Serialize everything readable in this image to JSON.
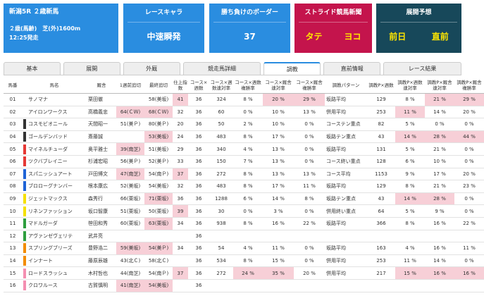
{
  "header": {
    "race": "新潟5R ２歳新馬",
    "conditions": "２歳(馬齢)　芝(外)1600m",
    "post_time": "12:25発走"
  },
  "cards": [
    {
      "title": "レースキャラ",
      "values": [
        "中速瞬発"
      ],
      "color": "#2a8de0",
      "value_color": "#ffffff"
    },
    {
      "title": "勝ち負けのボーダー",
      "values": [
        "37"
      ],
      "color": "#2a8de0",
      "value_color": "#ffffff"
    },
    {
      "title": "ストライド競馬新聞",
      "values": [
        "タテ",
        "ヨコ"
      ],
      "color": "#c4144c",
      "value_color": "#ffe600"
    },
    {
      "title": "展開予想",
      "values": [
        "前日",
        "直前"
      ],
      "color": "#17485a",
      "value_color": "#ffe600"
    }
  ],
  "tabs": {
    "items": [
      "基本",
      "展開",
      "外厩",
      "競走馬詳細",
      "調教",
      "直前情報",
      "レース結果"
    ],
    "active": 4
  },
  "table": {
    "columns": [
      "馬番",
      "馬名",
      "厩舎",
      "1週前追切",
      "最終追切",
      "仕上指数",
      "コース×週数",
      "コース×週数連対率",
      "コース×週数複勝率",
      "コース×厩舎連対率",
      "コース×厩舎複勝率",
      "調教パターン",
      "調教P×週数",
      "調教P×週数連対率",
      "調教P×厩舎連対率",
      "調教P×厩舎複勝率"
    ],
    "rows": [
      {
        "frame_color": "#ffffff",
        "highlighted": [
          5,
          9,
          10,
          14,
          15
        ],
        "cells": [
          "01",
          "サノマナ",
          "栗田徹",
          null,
          "58(美坂)",
          "41",
          "36",
          "324",
          "8 %",
          "20 %",
          "29 %",
          "坂路平均",
          "129",
          "8 %",
          "21 %",
          "29 %"
        ]
      },
      {
        "frame_color": "#ffffff",
        "highlighted": [
          3,
          4,
          13
        ],
        "cells": [
          "02",
          "アイロンワークス",
          "高橋義忠",
          "64(ＣＷ)",
          "68(ＣＷ)",
          "32",
          "36",
          "60",
          "0 %",
          "10 %",
          "13 %",
          "併用平均",
          "253",
          "11 %",
          "14 %",
          "20 %"
        ]
      },
      {
        "frame_color": "#333333",
        "highlighted": [],
        "cells": [
          "03",
          "コスモビオニール",
          "天間昭一",
          "51(美Ｐ)",
          "80(美Ｐ)",
          "20",
          "36",
          "50",
          "2 %",
          "10 %",
          "0 %",
          "コーステン重点",
          "82",
          "5 %",
          "0 %",
          "0 %"
        ]
      },
      {
        "frame_color": "#333333",
        "highlighted": [
          4,
          13,
          14,
          15
        ],
        "cells": [
          "04",
          "ゴールデンバッド",
          "斎藤誠",
          null,
          "53(美坂)",
          "24",
          "36",
          "483",
          "8 %",
          "17 %",
          "0 %",
          "坂路テン重点",
          "43",
          "14 %",
          "28 %",
          "44 %"
        ]
      },
      {
        "frame_color": "#e53935",
        "highlighted": [
          3
        ],
        "cells": [
          "05",
          "マイネルチューダ",
          "奥平雅士",
          "39(南芝)",
          "51(美坂)",
          "29",
          "36",
          "340",
          "4 %",
          "13 %",
          "0 %",
          "坂路平均",
          "131",
          "5 %",
          "21 %",
          "0 %"
        ]
      },
      {
        "frame_color": "#e53935",
        "highlighted": [],
        "cells": [
          "06",
          "ツクバブレイニー",
          "杉浦宏昭",
          "56(美Ｐ)",
          "52(美Ｐ)",
          "33",
          "36",
          "150",
          "7 %",
          "13 %",
          "0 %",
          "コース終い重点",
          "128",
          "6 %",
          "10 %",
          "0 %"
        ]
      },
      {
        "frame_color": "#1e63d6",
        "highlighted": [
          3,
          5
        ],
        "cells": [
          "07",
          "スパニッシュアート",
          "戸田博文",
          "47(南芝)",
          "54(南Ｐ)",
          "37",
          "36",
          "272",
          "8 %",
          "13 %",
          "13 %",
          "コース平均",
          "1153",
          "9 %",
          "17 %",
          "20 %"
        ]
      },
      {
        "frame_color": "#1e63d6",
        "highlighted": [],
        "cells": [
          "08",
          "ブロローグナンバー",
          "根本康広",
          "52(美坂)",
          "54(美坂)",
          "32",
          "36",
          "483",
          "8 %",
          "17 %",
          "11 %",
          "坂路平均",
          "129",
          "8 %",
          "21 %",
          "23 %"
        ]
      },
      {
        "frame_color": "#f5e000",
        "highlighted": [
          4,
          13,
          14
        ],
        "cells": [
          "09",
          "ジェットマックス",
          "森秀行",
          "66(栗坂)",
          "71(栗坂)",
          "36",
          "36",
          "1288",
          "6 %",
          "14 %",
          "8 %",
          "坂路テン重点",
          "43",
          "14 %",
          "28 %",
          "0 %"
        ]
      },
      {
        "frame_color": "#f5e000",
        "highlighted": [
          5
        ],
        "cells": [
          "10",
          "リネンファッション",
          "坂口智康",
          "51(栗坂)",
          "50(栗坂)",
          "39",
          "36",
          "30",
          "0 %",
          "3 %",
          "0 %",
          "併用終い重点",
          "64",
          "5 %",
          "9 %",
          "0 %"
        ]
      },
      {
        "frame_color": "#2e9e3e",
        "highlighted": [
          4
        ],
        "cells": [
          "11",
          "マドルガーダ",
          "笹田和秀",
          "60(栗坂)",
          "63(栗坂)",
          "34",
          "36",
          "938",
          "8 %",
          "16 %",
          "22 %",
          "坂路平均",
          "366",
          "8 %",
          "16 %",
          "22 %"
        ]
      },
      {
        "frame_color": "#2e9e3e",
        "highlighted": [],
        "cells": [
          "12",
          "アヴァンゼヴェリテ",
          "武井亮",
          null,
          null,
          null,
          "36",
          null,
          null,
          null,
          null,
          null,
          null,
          null,
          null,
          null
        ]
      },
      {
        "frame_color": "#f28c00",
        "highlighted": [
          3,
          4
        ],
        "cells": [
          "13",
          "スプリングブリーズ",
          "豊野浩二",
          "59(美坂)",
          "54(美Ｐ)",
          "34",
          "36",
          "54",
          "4 %",
          "11 %",
          "0 %",
          "坂路平均",
          "163",
          "4 %",
          "16 %",
          "11 %"
        ]
      },
      {
        "frame_color": "#f28c00",
        "highlighted": [],
        "cells": [
          "14",
          "インナート",
          "藤原辰雄",
          "43(北Ｃ)",
          "58(北Ｃ)",
          null,
          "36",
          "534",
          "8 %",
          "15 %",
          "0 %",
          "併用平均",
          "253",
          "11 %",
          "14 %",
          "0 %"
        ]
      },
      {
        "frame_color": "#f48fb1",
        "highlighted": [
          5,
          8,
          9,
          13,
          14,
          15
        ],
        "cells": [
          "15",
          "ロードスラッシュ",
          "木村哲也",
          "44(南芝)",
          "54(南Ｐ)",
          "37",
          "36",
          "272",
          "24 %",
          "35 %",
          "20 %",
          "併用平均",
          "217",
          "15 %",
          "16 %",
          "16 %"
        ]
      },
      {
        "frame_color": "#f48fb1",
        "highlighted": [
          3,
          4
        ],
        "cells": [
          "16",
          "クロワルース",
          "古賀慎明",
          "41(南芝)",
          "54(美坂)",
          null,
          "36",
          null,
          null,
          null,
          null,
          null,
          null,
          null,
          null,
          null
        ]
      }
    ]
  }
}
